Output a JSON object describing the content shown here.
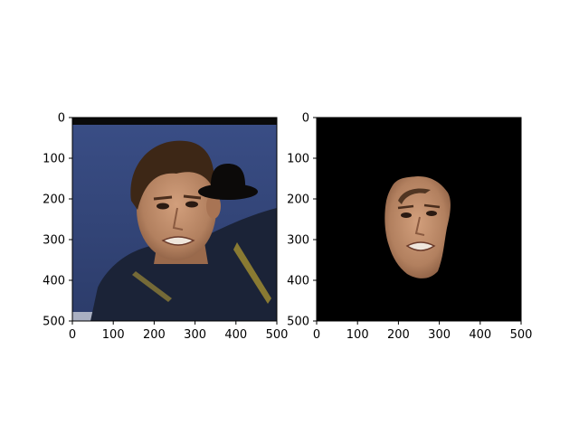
{
  "chart_data": [
    {
      "type": "image",
      "title": "",
      "xlabel": "",
      "ylabel": "",
      "xlim": [
        0,
        500
      ],
      "ylim": [
        500,
        0
      ],
      "xticks": [
        0,
        100,
        200,
        300,
        400,
        500
      ],
      "yticks": [
        0,
        100,
        200,
        300,
        400,
        500
      ],
      "grid": false,
      "content": "photo of a man's face against a blue background with a black bowler hat drawn at upper right"
    },
    {
      "type": "image",
      "title": "",
      "xlabel": "",
      "ylabel": "",
      "xlim": [
        0,
        500
      ],
      "ylim": [
        500,
        0
      ],
      "xticks": [
        0,
        100,
        200,
        300,
        400,
        500
      ],
      "yticks": [
        0,
        100,
        200,
        300,
        400,
        500
      ],
      "grid": false,
      "content": "segmented face region on a black background"
    }
  ],
  "colors": {
    "background_blue": "#34467a",
    "hat": "#0c0a09",
    "skin": "#b98461",
    "hair": "#3e2716",
    "shirt": "#1a2236",
    "mask_background": "#000000"
  }
}
